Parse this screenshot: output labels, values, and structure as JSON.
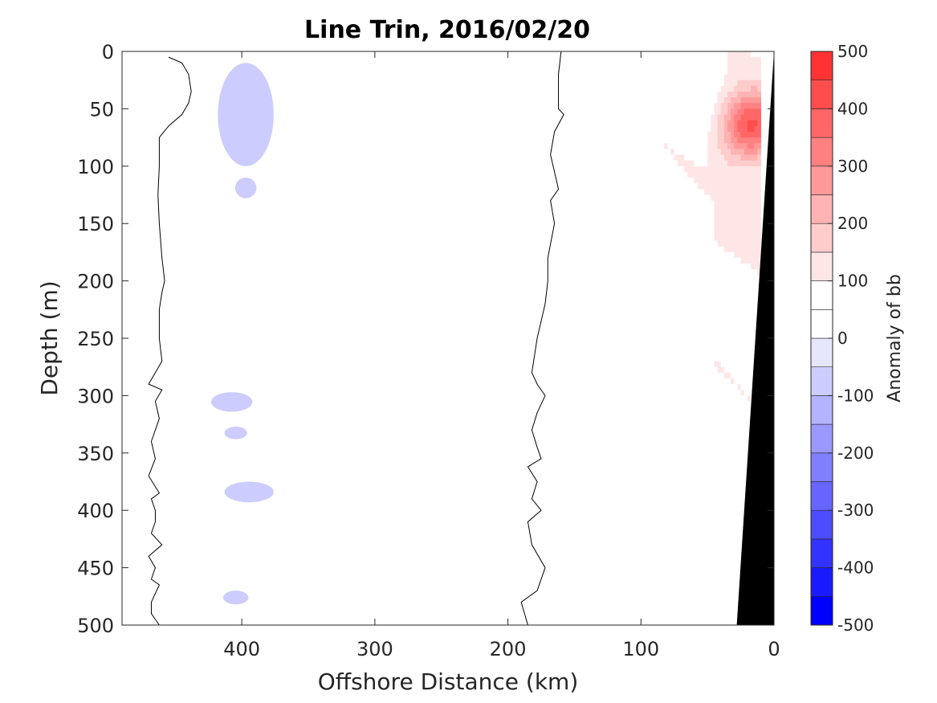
{
  "chart_data": {
    "type": "heatmap",
    "title": "Line Trin, 2016/02/20",
    "xlabel": "Offshore Distance (km)",
    "ylabel": "Depth (m)",
    "xlim": [
      490,
      0
    ],
    "ylim": [
      0,
      500
    ],
    "x_reversed": true,
    "y_reversed": true,
    "x_ticks": [
      400,
      300,
      200,
      100,
      0
    ],
    "y_ticks": [
      0,
      50,
      100,
      150,
      200,
      250,
      300,
      350,
      400,
      450,
      500
    ],
    "colorbar": {
      "label": "Anomaly of bb",
      "range": [
        -500,
        500
      ],
      "ticks": [
        500,
        400,
        300,
        200,
        100,
        0,
        -100,
        -200,
        -300,
        -400,
        -500
      ],
      "levels": [
        -500,
        -450,
        -400,
        -350,
        -300,
        -250,
        -200,
        -150,
        -100,
        -50,
        0,
        50,
        100,
        150,
        200,
        250,
        300,
        350,
        400,
        450,
        500
      ],
      "colors": [
        "#0000ff",
        "#1a1aff",
        "#3333ff",
        "#4d4dff",
        "#6666ff",
        "#8080ff",
        "#9999ff",
        "#b3b3ff",
        "#ccccff",
        "#e6e6ff",
        "#ffffff",
        "#ffffff",
        "#ffe6e6",
        "#ffcccc",
        "#ffb3b3",
        "#ff9999",
        "#ff8080",
        "#ff6666",
        "#ff4d4d",
        "#ff3333",
        "#ff1a1a",
        "#ff0000"
      ]
    },
    "zero_contours": [
      {
        "name": "western",
        "x": [
          455,
          445,
          440,
          438,
          440,
          445,
          455,
          462,
          462,
          463,
          462,
          460,
          458,
          460,
          462,
          462,
          460,
          465,
          470,
          460,
          465,
          462,
          468,
          465,
          470,
          462,
          468,
          465,
          465,
          468,
          460,
          470,
          465,
          468,
          462,
          468,
          468,
          465,
          462,
          465
        ],
        "y": [
          5,
          10,
          20,
          35,
          45,
          55,
          65,
          75,
          100,
          125,
          150,
          180,
          200,
          210,
          225,
          250,
          270,
          280,
          290,
          295,
          305,
          320,
          340,
          355,
          370,
          385,
          390,
          400,
          410,
          420,
          430,
          440,
          450,
          460,
          465,
          480,
          490,
          495,
          500,
          500
        ]
      },
      {
        "name": "eastern",
        "x": [
          160,
          162,
          162,
          158,
          165,
          168,
          162,
          168,
          165,
          170,
          170,
          172,
          178,
          180,
          182,
          178,
          172,
          178,
          182,
          178,
          175,
          185,
          178,
          182,
          175,
          185,
          182,
          172,
          178,
          190,
          185,
          160
        ],
        "y": [
          0,
          20,
          50,
          55,
          70,
          90,
          120,
          130,
          150,
          180,
          200,
          220,
          250,
          265,
          280,
          290,
          300,
          315,
          330,
          345,
          355,
          362,
          375,
          390,
          400,
          410,
          430,
          450,
          470,
          480,
          500,
          500
        ]
      }
    ],
    "positive_anomaly_region": {
      "description_free": true,
      "x_range": [
        110,
        10
      ],
      "y_range": [
        0,
        500
      ],
      "max_value": 350,
      "max_at": {
        "x": 18,
        "y": 65
      }
    },
    "negative_anomaly_patches": [
      {
        "x_range": [
          418,
          376
        ],
        "y_range": [
          10,
          100
        ],
        "value": -60
      },
      {
        "x_range": [
          405,
          389
        ],
        "y_range": [
          110,
          128
        ],
        "value": -60
      },
      {
        "x_range": [
          423,
          392
        ],
        "y_range": [
          297,
          314
        ],
        "value": -60
      },
      {
        "x_range": [
          413,
          396
        ],
        "y_range": [
          327,
          338
        ],
        "value": -60
      },
      {
        "x_range": [
          413,
          376
        ],
        "y_range": [
          375,
          393
        ],
        "value": -60
      },
      {
        "x_range": [
          414,
          395
        ],
        "y_range": [
          470,
          482
        ],
        "value": -60
      }
    ],
    "bathymetry": {
      "color": "#000000",
      "x_at_surface": 0,
      "x_at_bottom": 28,
      "y_top": 0,
      "y_bottom": 500
    },
    "grid": false
  }
}
